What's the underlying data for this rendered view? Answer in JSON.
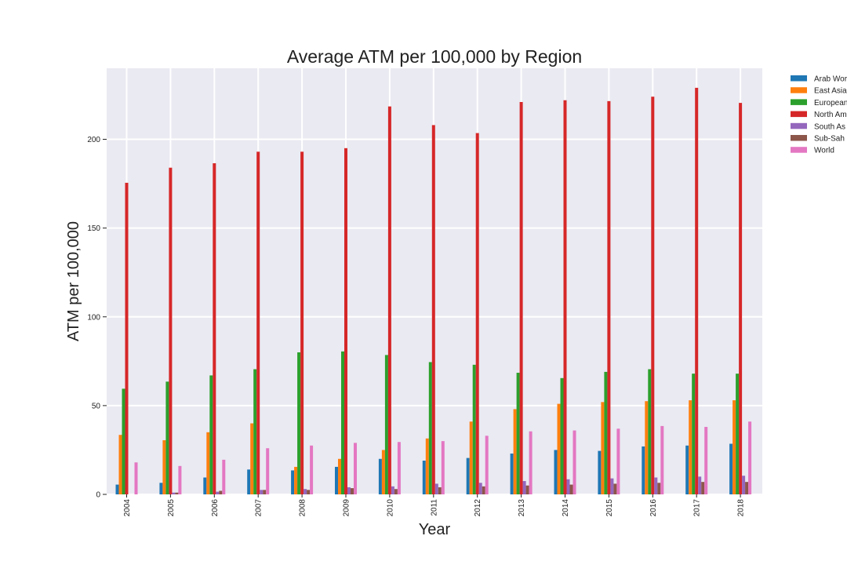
{
  "chart_data": {
    "type": "bar",
    "title": "Average ATM per 100,000 by Region",
    "xlabel": "Year",
    "ylabel": "ATM per 100,000",
    "ylim": [
      0,
      240
    ],
    "yticks": [
      0,
      50,
      100,
      150,
      200
    ],
    "grid": true,
    "legend_position": "right, outside",
    "categories": [
      "2004",
      "2005",
      "2006",
      "2007",
      "2008",
      "2009",
      "2010",
      "2011",
      "2012",
      "2013",
      "2014",
      "2015",
      "2016",
      "2017",
      "2018"
    ],
    "series": [
      {
        "name": "Arab World",
        "legend_label": "Arab Wor",
        "color": "#1f77b4",
        "values": [
          5.5,
          6.5,
          9.5,
          14,
          13.5,
          15.5,
          20,
          19,
          20.5,
          23,
          25,
          24.5,
          27,
          27.5,
          28.5
        ]
      },
      {
        "name": "East Asia & Pacific",
        "legend_label": "East Asia",
        "color": "#ff7f0e",
        "values": [
          33.5,
          30.5,
          35,
          40,
          15.5,
          20,
          25,
          31.5,
          41,
          48,
          51,
          52,
          52.5,
          53,
          53
        ]
      },
      {
        "name": "European Union",
        "legend_label": "European",
        "color": "#2ca02c",
        "values": [
          59.5,
          63.5,
          67,
          70.5,
          80,
          80.5,
          78.5,
          74.5,
          73,
          68.5,
          65.5,
          69,
          70.5,
          68,
          68
        ]
      },
      {
        "name": "North America",
        "legend_label": "North Am",
        "color": "#d62728",
        "values": [
          175.5,
          184,
          186.5,
          193,
          193,
          195,
          218.5,
          208,
          203.5,
          221,
          222,
          221.5,
          224,
          229,
          220.5
        ]
      },
      {
        "name": "South Asia",
        "legend_label": "South As",
        "color": "#9467bd",
        "values": [
          0,
          1,
          1.5,
          2.5,
          3,
          4,
          4.5,
          6,
          6.5,
          7.5,
          8.5,
          9,
          9.5,
          10,
          10.5
        ]
      },
      {
        "name": "Sub-Saharan Africa",
        "legend_label": "Sub-Sah",
        "color": "#8c564b",
        "values": [
          0,
          1,
          2,
          2.5,
          2.5,
          3.5,
          3,
          4,
          4.5,
          5,
          5.5,
          6,
          6.5,
          7,
          7
        ]
      },
      {
        "name": "World",
        "legend_label": "World",
        "color": "#e377c2",
        "values": [
          18,
          16,
          19.5,
          26,
          27.5,
          29,
          29.5,
          30,
          33,
          35.5,
          36,
          37,
          38.5,
          38,
          41
        ]
      }
    ]
  }
}
